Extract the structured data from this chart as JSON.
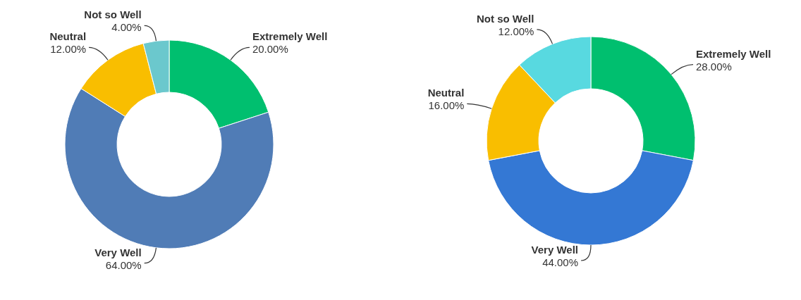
{
  "chart_data": [
    {
      "type": "donut",
      "categories": [
        "Extremely Well",
        "Very Well",
        "Neutral",
        "Not so Well"
      ],
      "values": [
        20,
        64,
        12,
        4
      ],
      "colors": [
        "#00bf6f",
        "#507cb6",
        "#f9be00",
        "#6bc8cd"
      ],
      "value_labels": [
        "20.00%",
        "64.00%",
        "12.00%",
        "4.00%"
      ]
    },
    {
      "type": "donut",
      "categories": [
        "Extremely Well",
        "Very Well",
        "Neutral",
        "Not so Well"
      ],
      "values": [
        28,
        44,
        16,
        12
      ],
      "colors": [
        "#00bf6f",
        "#3478d4",
        "#f9be00",
        "#58d9e0"
      ],
      "value_labels": [
        "28.00%",
        "44.00%",
        "16.00%",
        "12.00%"
      ]
    }
  ]
}
